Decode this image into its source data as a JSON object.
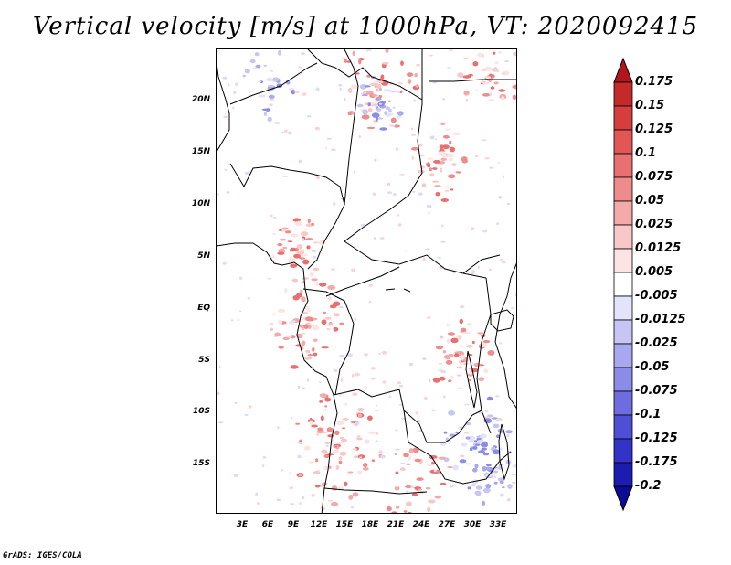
{
  "title": "Vertical velocity [m/s] at 1000hPa, VT: 2020092415",
  "credit": "GrADS: IGES/COLA",
  "map": {
    "lat_labels": [
      "20N",
      "15N",
      "10N",
      "5N",
      "EQ",
      "5S",
      "10S",
      "15S"
    ],
    "lon_labels": [
      "3E",
      "6E",
      "9E",
      "12E",
      "15E",
      "18E",
      "21E",
      "24E",
      "27E",
      "30E",
      "33E"
    ]
  },
  "colorbar": {
    "labels": [
      "0.175",
      "0.15",
      "0.125",
      "0.1",
      "0.075",
      "0.05",
      "0.025",
      "0.0125",
      "0.005",
      "-0.005",
      "-0.0125",
      "-0.025",
      "-0.05",
      "-0.075",
      "-0.1",
      "-0.125",
      "-0.175",
      "-0.2"
    ],
    "colors": [
      "#b0161c",
      "#c52a2a",
      "#d63d3d",
      "#e25656",
      "#e87070",
      "#ee8c8c",
      "#f4aaaa",
      "#f8c8c8",
      "#fce4e4",
      "#ffffff",
      "#e3e3fa",
      "#c6c6f4",
      "#a8a8ee",
      "#8b8be8",
      "#6d6de0",
      "#4f4fd6",
      "#3333c8",
      "#1c1cb0",
      "#0c0c96"
    ]
  }
}
